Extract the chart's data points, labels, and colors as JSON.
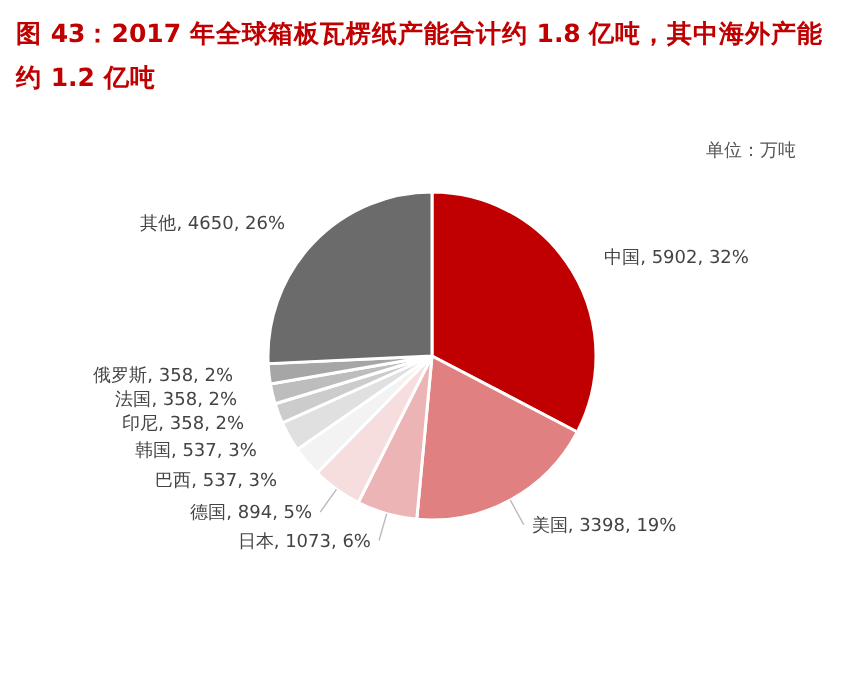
{
  "chart_data": {
    "type": "pie",
    "title": "图 43：2017 年全球箱板瓦楞纸产能合计约 1.8 亿吨，其中海外产能约 1.2 亿吨",
    "categories": [
      "中国",
      "美国",
      "日本",
      "德国",
      "巴西",
      "韩国",
      "印尼",
      "法国",
      "俄罗斯",
      "其他"
    ],
    "values": [
      5902,
      3398,
      1073,
      894,
      537,
      537,
      358,
      358,
      358,
      4650
    ],
    "value_labels": [
      "5902, 32%",
      "3398, 19%",
      "1073, 6%",
      "894, 5%",
      "537, 3%",
      "537, 3%",
      "358, 2%",
      "358, 2%",
      "358, 2%",
      "4650, 26%"
    ],
    "colors": [
      "#c00000",
      "#e08080",
      "#ecb4b4",
      "#f6dede",
      "#f3f3f3",
      "#e0e0e0",
      "#cccccc",
      "#bdbdbd",
      "#a6a6a6",
      "#6b6b6b"
    ],
    "annotations": [
      "单位：万吨"
    ],
    "legend": false
  }
}
